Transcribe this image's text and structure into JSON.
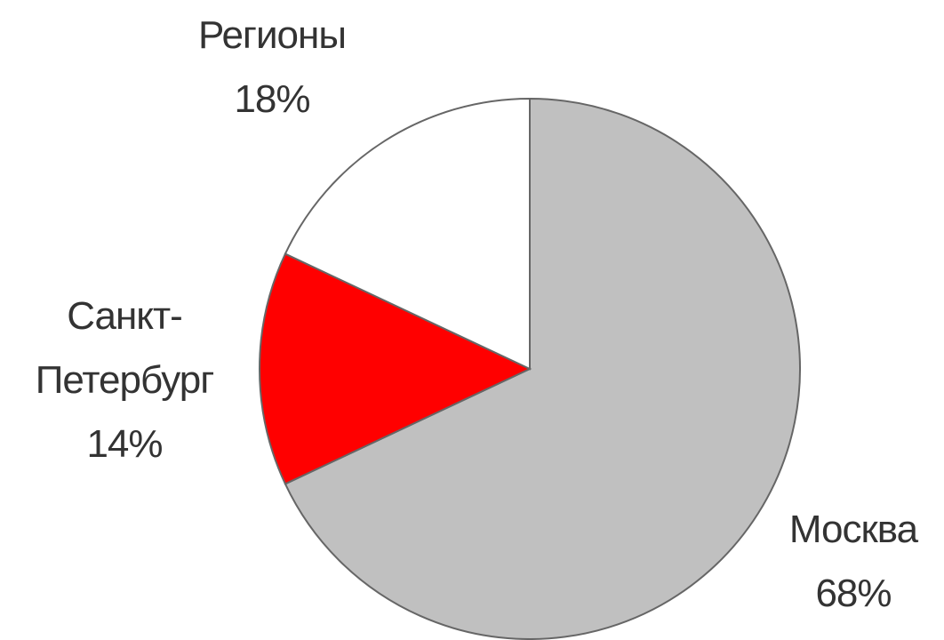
{
  "chart_data": {
    "type": "pie",
    "categories": [
      "Москва",
      "Санкт-Петербург",
      "Регионы"
    ],
    "values": [
      68,
      14,
      18
    ],
    "value_labels": [
      "68%",
      "14%",
      "18%"
    ],
    "colors": [
      "#c0c0c0",
      "#ff0000",
      "#ffffff"
    ]
  }
}
